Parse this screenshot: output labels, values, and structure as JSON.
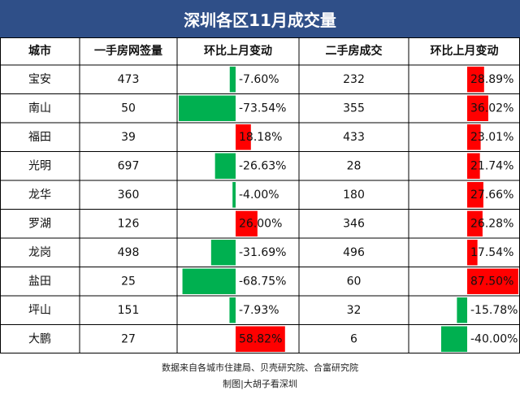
{
  "title": "深圳各区11月成交量",
  "chart_data": {
    "type": "table",
    "headers": [
      "城市",
      "一手房网签量",
      "环比上月变动",
      "二手房成交",
      "环比上月变动"
    ],
    "rows": [
      {
        "city": "宝安",
        "new_sales": 473,
        "new_change": -7.6,
        "new_change_label": "-7.60%",
        "resale": 232,
        "resale_change": 28.89,
        "resale_change_label": "28.89%"
      },
      {
        "city": "南山",
        "new_sales": 50,
        "new_change": -73.54,
        "new_change_label": "-73.54%",
        "resale": 355,
        "resale_change": 36.02,
        "resale_change_label": "36.02%"
      },
      {
        "city": "福田",
        "new_sales": 39,
        "new_change": 18.18,
        "new_change_label": "18.18%",
        "resale": 433,
        "resale_change": 23.01,
        "resale_change_label": "23.01%"
      },
      {
        "city": "光明",
        "new_sales": 697,
        "new_change": -26.63,
        "new_change_label": "-26.63%",
        "resale": 28,
        "resale_change": 21.74,
        "resale_change_label": "21.74%"
      },
      {
        "city": "龙华",
        "new_sales": 360,
        "new_change": -4.0,
        "new_change_label": "-4.00%",
        "resale": 180,
        "resale_change": 27.66,
        "resale_change_label": "27.66%"
      },
      {
        "city": "罗湖",
        "new_sales": 126,
        "new_change": 26.0,
        "new_change_label": "26.00%",
        "resale": 346,
        "resale_change": 26.28,
        "resale_change_label": "26.28%"
      },
      {
        "city": "龙岗",
        "new_sales": 498,
        "new_change": -31.69,
        "new_change_label": "-31.69%",
        "resale": 496,
        "resale_change": 17.54,
        "resale_change_label": "17.54%"
      },
      {
        "city": "盐田",
        "new_sales": 25,
        "new_change": -68.75,
        "new_change_label": "-68.75%",
        "resale": 60,
        "resale_change": 87.5,
        "resale_change_label": "87.50%"
      },
      {
        "city": "坪山",
        "new_sales": 151,
        "new_change": -7.93,
        "new_change_label": "-7.93%",
        "resale": 32,
        "resale_change": -15.78,
        "resale_change_label": "-15.78%"
      },
      {
        "city": "大鹏",
        "new_sales": 27,
        "new_change": 58.82,
        "new_change_label": "58.82%",
        "resale": 6,
        "resale_change": -40.0,
        "resale_change_label": "-40.00%"
      }
    ],
    "new_change_max_abs": 73.54,
    "resale_change_max_abs": 87.5
  },
  "footer": {
    "source": "数据来自各城市住建局、贝壳研究院、合富研究院",
    "credit": "制图|大胡子看深圳"
  },
  "colors": {
    "title_bg": "#2f4f88",
    "title_text": "#ffffff",
    "positive_bar": "#ff0000",
    "negative_bar": "#00b050",
    "grid": "#000000"
  }
}
